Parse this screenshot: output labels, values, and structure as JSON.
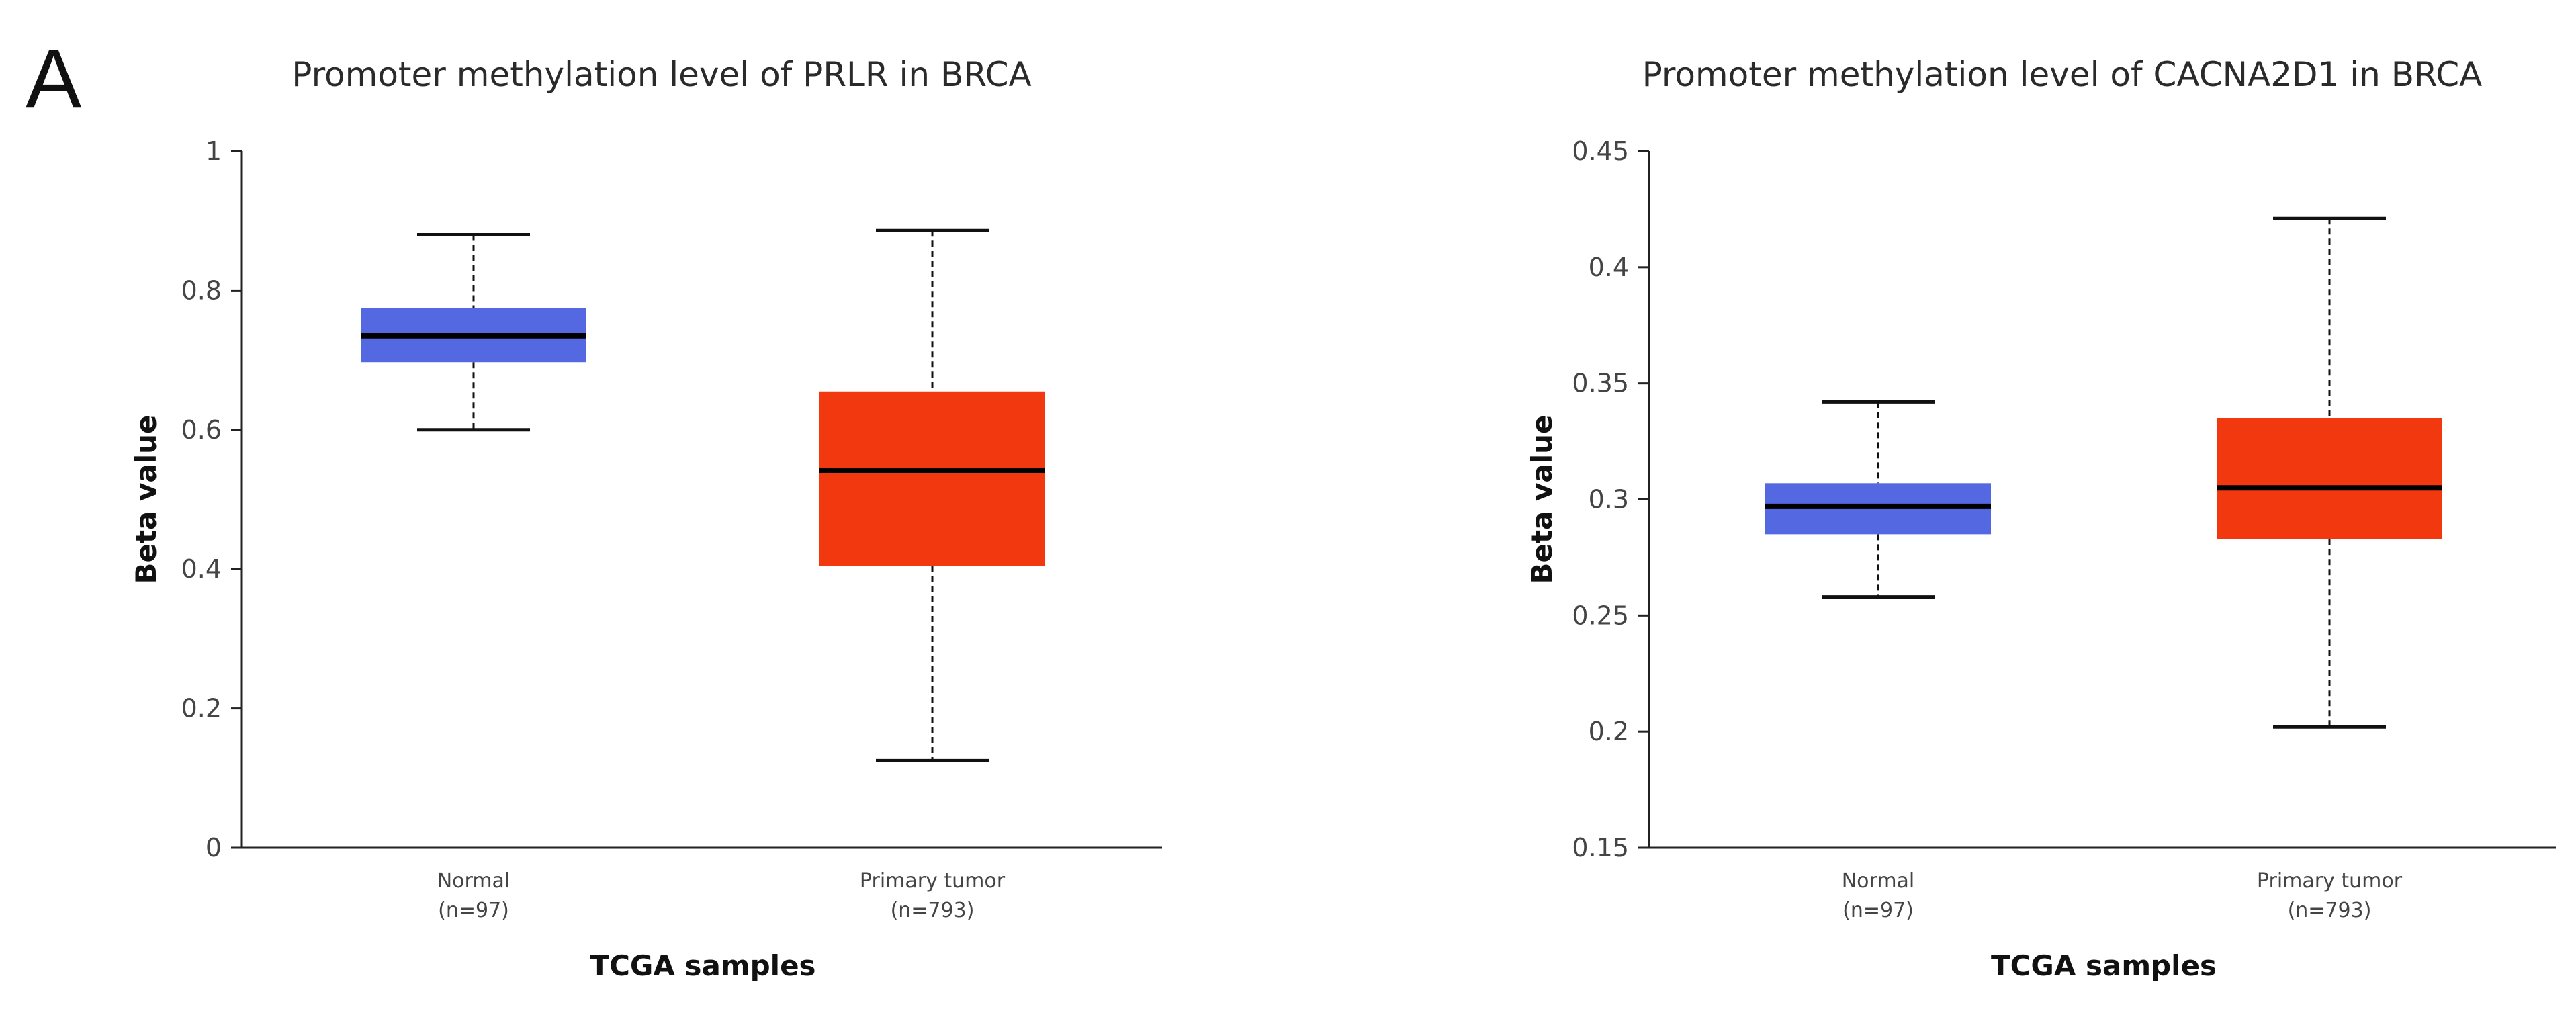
{
  "panel_label": "A",
  "colors": {
    "normal": "#5468E2",
    "tumor": "#F2380E"
  },
  "chart_data": [
    {
      "type": "box",
      "title": "Promoter methylation level of PRLR in BRCA",
      "xlabel": "TCGA samples",
      "ylabel": "Beta value",
      "ylim": [
        0,
        1
      ],
      "yticks": [
        0,
        0.2,
        0.4,
        0.6,
        0.8,
        1
      ],
      "ytick_labels": [
        "0",
        "0.2",
        "0.4",
        "0.6",
        "0.8",
        "1"
      ],
      "categories": [
        {
          "name": "Normal",
          "n_label": "(n=97)",
          "min": 0.6,
          "q1": 0.697,
          "median": 0.735,
          "q3": 0.775,
          "max": 0.88,
          "color": "normal"
        },
        {
          "name": "Primary tumor",
          "n_label": "(n=793)",
          "min": 0.125,
          "q1": 0.405,
          "median": 0.542,
          "q3": 0.655,
          "max": 0.886,
          "color": "tumor"
        }
      ]
    },
    {
      "type": "box",
      "title": "Promoter methylation level of CACNA2D1 in BRCA",
      "xlabel": "TCGA samples",
      "ylabel": "Beta value",
      "ylim": [
        0.15,
        0.45
      ],
      "yticks": [
        0.15,
        0.2,
        0.25,
        0.3,
        0.35,
        0.4,
        0.45
      ],
      "ytick_labels": [
        "0.15",
        "0.2",
        "0.25",
        "0.3",
        "0.35",
        "0.4",
        "0.45"
      ],
      "categories": [
        {
          "name": "Normal",
          "n_label": "(n=97)",
          "min": 0.258,
          "q1": 0.285,
          "median": 0.297,
          "q3": 0.307,
          "max": 0.342,
          "color": "normal"
        },
        {
          "name": "Primary tumor",
          "n_label": "(n=793)",
          "min": 0.202,
          "q1": 0.283,
          "median": 0.305,
          "q3": 0.335,
          "max": 0.421,
          "color": "tumor"
        }
      ]
    }
  ]
}
